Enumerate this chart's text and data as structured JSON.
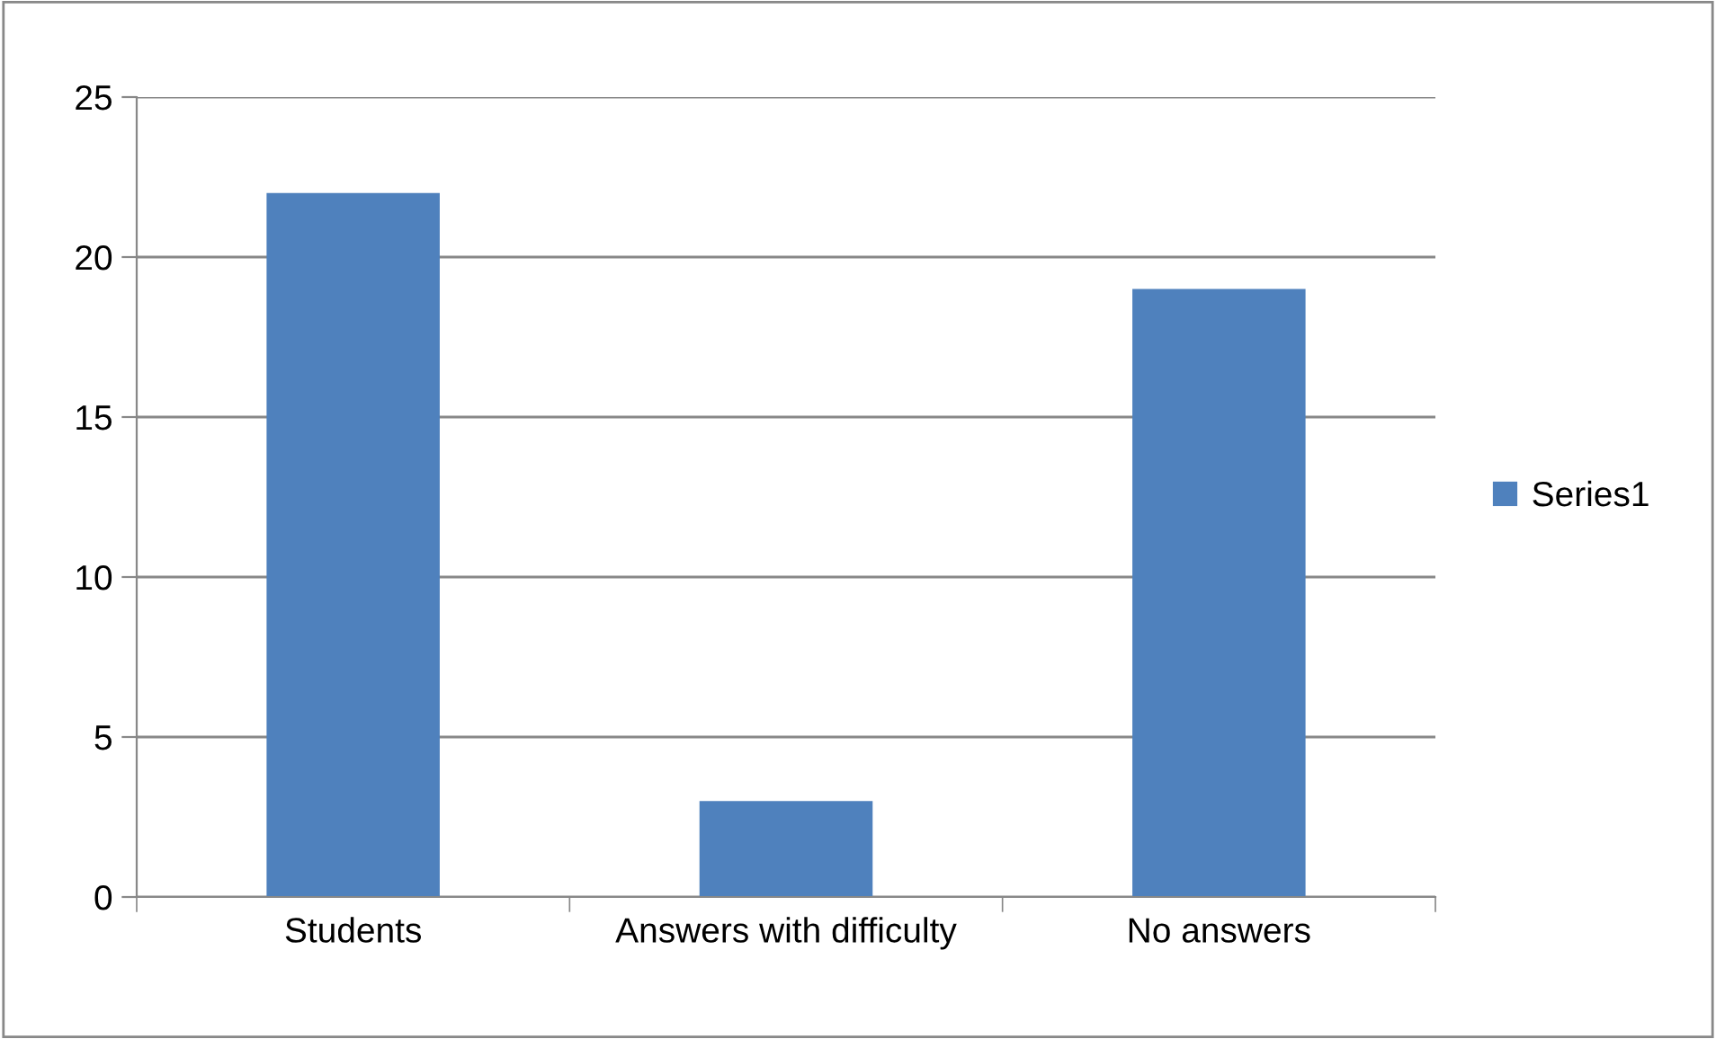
{
  "chart_data": {
    "type": "bar",
    "categories": [
      "Students",
      "Answers with difficulty",
      "No answers"
    ],
    "series": [
      {
        "name": "Series1",
        "color": "#4f81bd",
        "values": [
          22,
          3,
          19
        ]
      }
    ],
    "ylim": [
      0,
      25
    ],
    "yticks": [
      0,
      5,
      10,
      15,
      20,
      25
    ],
    "grid": "y",
    "legend": "right"
  }
}
